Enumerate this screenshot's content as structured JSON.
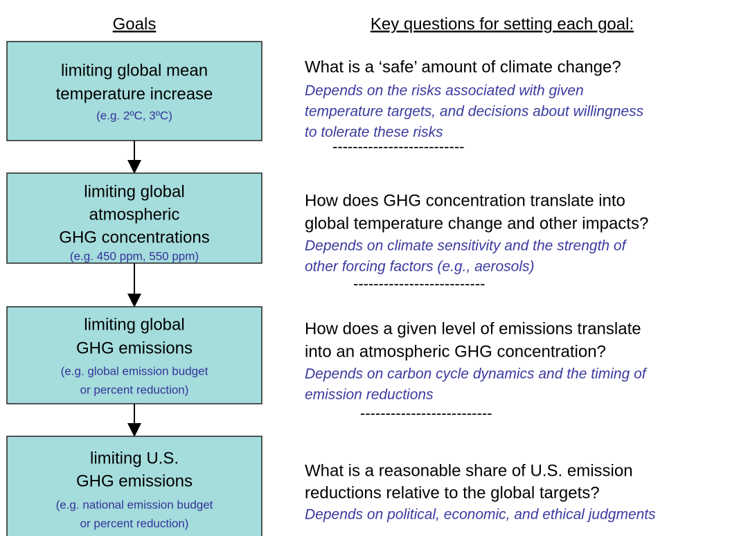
{
  "headers": {
    "goals": "Goals",
    "questions": "Key questions for setting each goal:"
  },
  "goals": [
    {
      "title_lines": [
        "limiting global mean",
        "temperature increase"
      ],
      "example_lines": [
        "(e.g. 2ºC, 3ºC)"
      ]
    },
    {
      "title_lines": [
        "limiting global",
        "atmospheric",
        "GHG concentrations"
      ],
      "example_lines": [
        "(e.g.  450 ppm, 550 ppm)"
      ]
    },
    {
      "title_lines": [
        "limiting global",
        "GHG emissions"
      ],
      "example_lines": [
        "(e.g. global emission budget",
        "or percent reduction)"
      ]
    },
    {
      "title_lines": [
        "limiting U.S.",
        "GHG emissions"
      ],
      "example_lines": [
        "(e.g. national emission budget",
        "or percent reduction)"
      ]
    }
  ],
  "questions": [
    {
      "question_lines": [
        "What is a ‘safe’ amount of climate change?"
      ],
      "answer_lines": [
        "Depends on the risks associated with given",
        "temperature targets, and decisions about willingness",
        "to tolerate these risks"
      ],
      "separator": "--------------------------"
    },
    {
      "question_lines": [
        "How does GHG concentration translate into",
        "global temperature change and other impacts?"
      ],
      "answer_lines": [
        "Depends on climate sensitivity and the strength of",
        "other forcing factors (e.g., aerosols)"
      ],
      "separator": "--------------------------"
    },
    {
      "question_lines": [
        "How does a given level of emissions translate",
        "into an atmospheric GHG concentration?"
      ],
      "answer_lines": [
        "Depends on carbon cycle dynamics and the timing of",
        "emission reductions"
      ],
      "separator": "--------------------------"
    },
    {
      "question_lines": [
        "What is a reasonable share of U.S. emission",
        "reductions relative to the global targets?"
      ],
      "answer_lines": [
        "Depends on political, economic, and ethical judgments"
      ]
    }
  ]
}
